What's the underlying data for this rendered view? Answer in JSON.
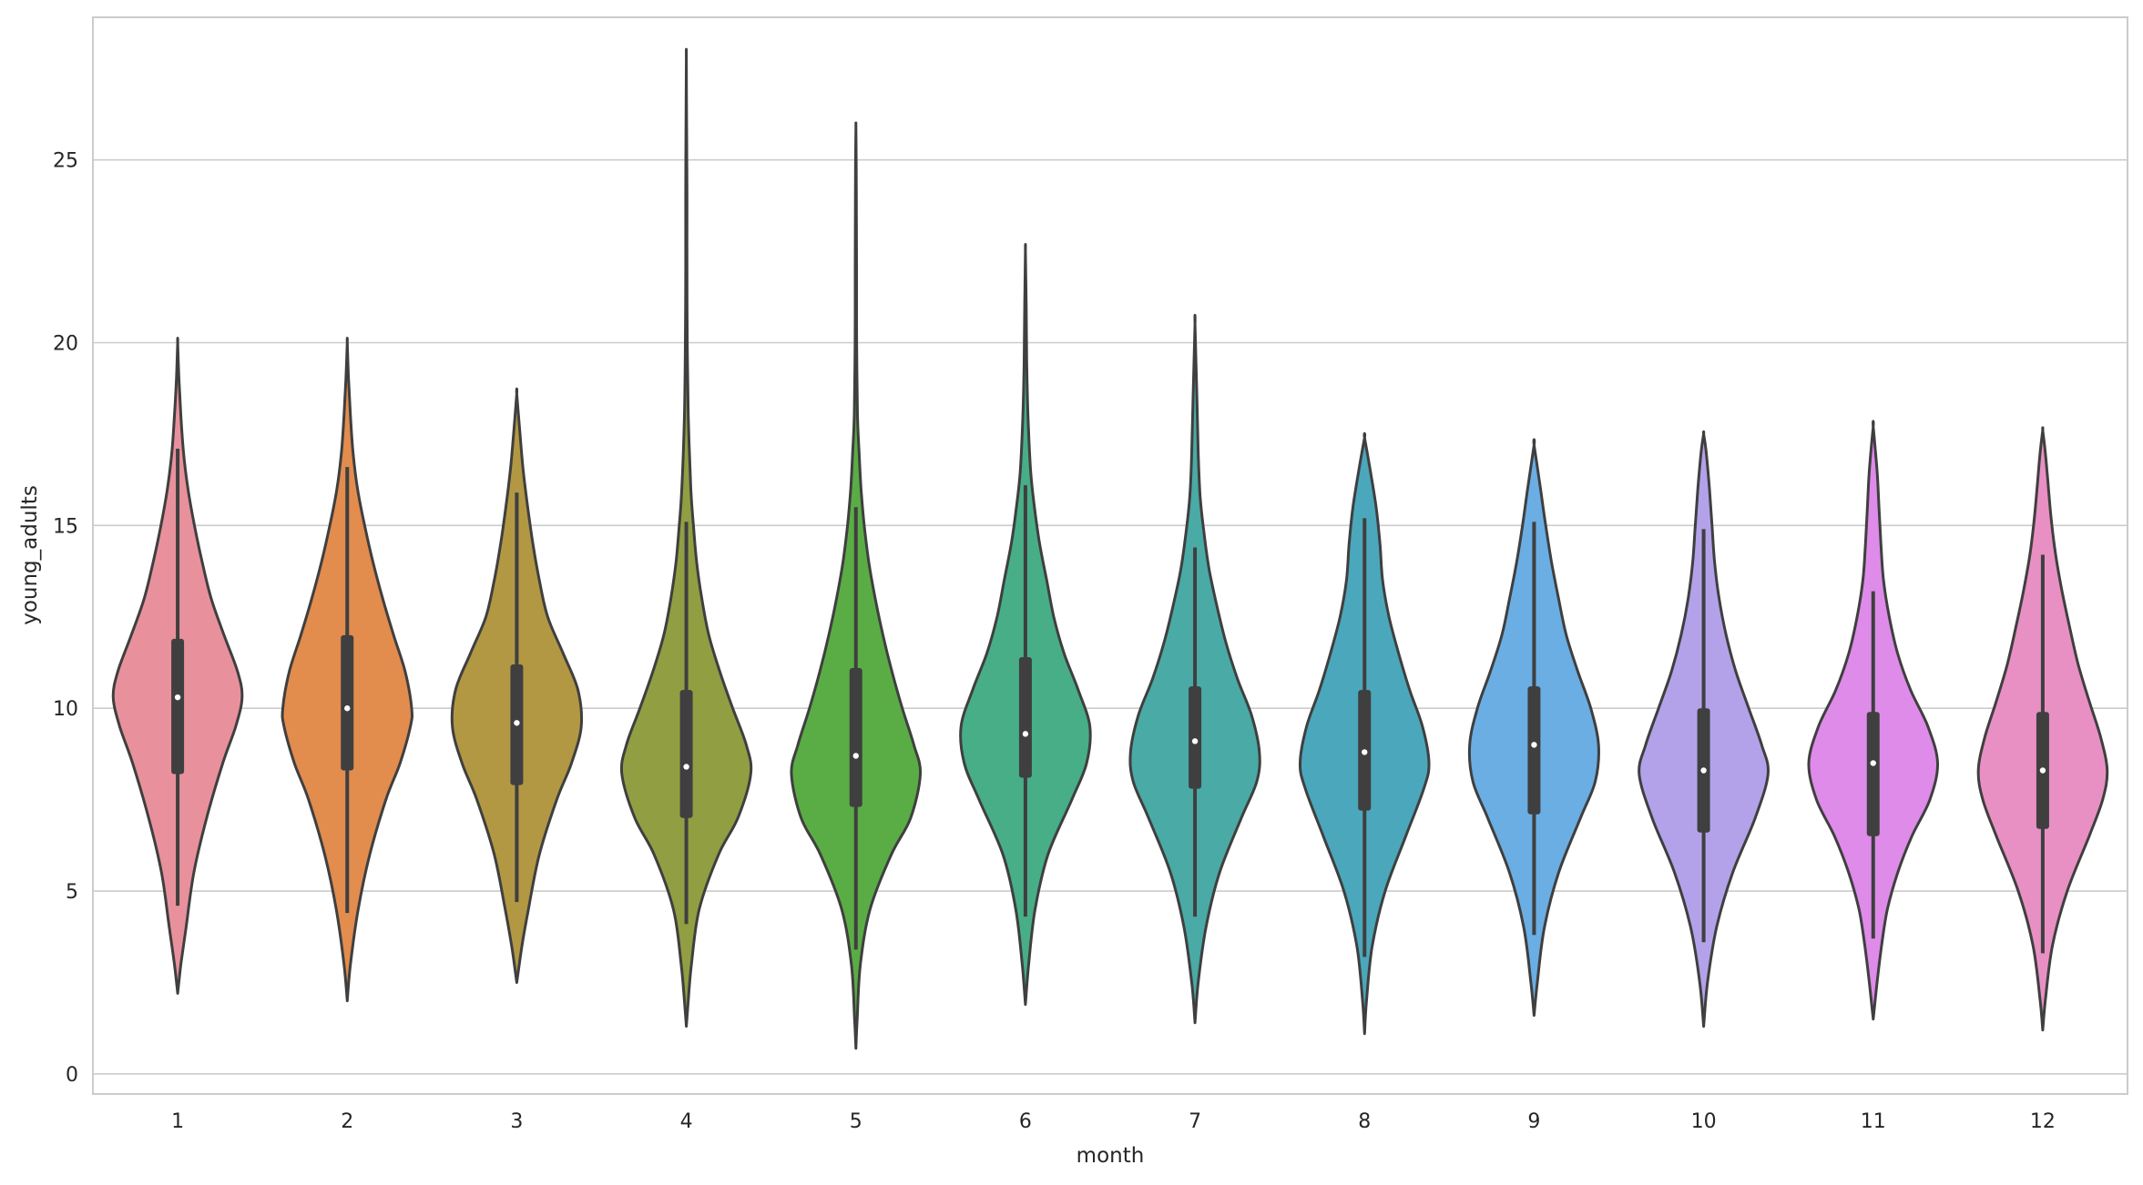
{
  "chart_data": {
    "type": "violin",
    "title": "",
    "xlabel": "month",
    "ylabel": "young_adults",
    "categories": [
      "1",
      "2",
      "3",
      "4",
      "5",
      "6",
      "7",
      "8",
      "9",
      "10",
      "11",
      "12"
    ],
    "yticks": [
      "0",
      "5",
      "10",
      "15",
      "20",
      "25"
    ],
    "ytick_values": [
      0,
      5,
      10,
      15,
      20,
      25
    ],
    "ylim": [
      -0.55,
      28.9
    ],
    "grid": true,
    "colors": [
      "#e8919c",
      "#e28c4e",
      "#b29843",
      "#929e42",
      "#5aad45",
      "#47ae88",
      "#4aaaa6",
      "#4ba7bc",
      "#6aaee4",
      "#b3a2ea",
      "#de8bea",
      "#e890c3"
    ],
    "violins": [
      {
        "min": 2.2,
        "max": 20.0,
        "q1": 8.2,
        "median": 10.3,
        "q3": 11.9,
        "whisker_low": 4.6,
        "whisker_high": 17.1,
        "profile": [
          [
            2.2,
            0.0
          ],
          [
            3.0,
            0.05
          ],
          [
            4.0,
            0.13
          ],
          [
            5.5,
            0.25
          ],
          [
            7.0,
            0.45
          ],
          [
            8.5,
            0.7
          ],
          [
            9.5,
            0.9
          ],
          [
            10.3,
            1.0
          ],
          [
            11.0,
            0.93
          ],
          [
            12.0,
            0.72
          ],
          [
            13.0,
            0.52
          ],
          [
            14.0,
            0.38
          ],
          [
            15.0,
            0.26
          ],
          [
            16.0,
            0.16
          ],
          [
            17.0,
            0.09
          ],
          [
            18.0,
            0.05
          ],
          [
            19.0,
            0.02
          ],
          [
            20.0,
            0.0
          ]
        ]
      },
      {
        "min": 2.0,
        "max": 20.0,
        "q1": 8.3,
        "median": 10.0,
        "q3": 12.0,
        "whisker_low": 4.4,
        "whisker_high": 16.6,
        "profile": [
          [
            2.0,
            0.0
          ],
          [
            3.0,
            0.05
          ],
          [
            4.5,
            0.17
          ],
          [
            6.0,
            0.35
          ],
          [
            7.5,
            0.6
          ],
          [
            8.5,
            0.82
          ],
          [
            9.5,
            0.98
          ],
          [
            10.0,
            1.0
          ],
          [
            11.0,
            0.9
          ],
          [
            12.0,
            0.72
          ],
          [
            13.0,
            0.55
          ],
          [
            14.0,
            0.4
          ],
          [
            15.0,
            0.27
          ],
          [
            16.0,
            0.16
          ],
          [
            17.0,
            0.09
          ],
          [
            18.0,
            0.05
          ],
          [
            19.0,
            0.02
          ],
          [
            20.0,
            0.0
          ]
        ]
      },
      {
        "min": 2.5,
        "max": 18.6,
        "q1": 7.9,
        "median": 9.6,
        "q3": 11.2,
        "whisker_low": 4.7,
        "whisker_high": 15.9,
        "profile": [
          [
            2.5,
            0.0
          ],
          [
            3.5,
            0.08
          ],
          [
            4.5,
            0.18
          ],
          [
            6.0,
            0.35
          ],
          [
            7.5,
            0.62
          ],
          [
            8.5,
            0.85
          ],
          [
            9.5,
            1.0
          ],
          [
            10.5,
            0.95
          ],
          [
            11.5,
            0.72
          ],
          [
            12.5,
            0.48
          ],
          [
            13.5,
            0.35
          ],
          [
            14.5,
            0.25
          ],
          [
            15.5,
            0.17
          ],
          [
            16.5,
            0.1
          ],
          [
            17.5,
            0.05
          ],
          [
            18.6,
            0.0
          ]
        ]
      },
      {
        "min": 1.3,
        "max": 27.8,
        "q1": 7.0,
        "median": 8.4,
        "q3": 10.5,
        "whisker_low": 4.1,
        "whisker_high": 15.1,
        "profile": [
          [
            1.3,
            0.0
          ],
          [
            2.0,
            0.03
          ],
          [
            3.0,
            0.08
          ],
          [
            4.5,
            0.2
          ],
          [
            6.0,
            0.5
          ],
          [
            7.0,
            0.8
          ],
          [
            8.2,
            1.0
          ],
          [
            9.0,
            0.93
          ],
          [
            10.0,
            0.72
          ],
          [
            11.0,
            0.52
          ],
          [
            12.0,
            0.35
          ],
          [
            13.0,
            0.24
          ],
          [
            14.0,
            0.16
          ],
          [
            15.0,
            0.11
          ],
          [
            16.0,
            0.07
          ],
          [
            18.0,
            0.03
          ],
          [
            20.0,
            0.015
          ],
          [
            22.0,
            0.01
          ],
          [
            24.0,
            0.01
          ],
          [
            25.0,
            0.008
          ],
          [
            26.0,
            0.005
          ],
          [
            27.8,
            0.0
          ]
        ]
      },
      {
        "min": 0.7,
        "max": 25.9,
        "q1": 7.3,
        "median": 8.7,
        "q3": 11.1,
        "whisker_low": 3.4,
        "whisker_high": 15.5,
        "profile": [
          [
            0.7,
            0.0
          ],
          [
            1.5,
            0.02
          ],
          [
            3.0,
            0.07
          ],
          [
            4.5,
            0.22
          ],
          [
            6.0,
            0.55
          ],
          [
            7.0,
            0.85
          ],
          [
            8.2,
            1.0
          ],
          [
            9.0,
            0.9
          ],
          [
            10.0,
            0.72
          ],
          [
            11.0,
            0.56
          ],
          [
            12.0,
            0.42
          ],
          [
            13.0,
            0.3
          ],
          [
            14.0,
            0.2
          ],
          [
            15.0,
            0.13
          ],
          [
            16.0,
            0.08
          ],
          [
            17.0,
            0.05
          ],
          [
            18.0,
            0.025
          ],
          [
            20.0,
            0.012
          ],
          [
            22.0,
            0.01
          ],
          [
            23.5,
            0.008
          ],
          [
            25.0,
            0.005
          ],
          [
            25.9,
            0.0
          ]
        ]
      },
      {
        "min": 1.9,
        "max": 22.5,
        "q1": 8.1,
        "median": 9.3,
        "q3": 11.4,
        "whisker_low": 4.3,
        "whisker_high": 16.1,
        "profile": [
          [
            1.9,
            0.0
          ],
          [
            3.0,
            0.05
          ],
          [
            4.5,
            0.15
          ],
          [
            6.0,
            0.35
          ],
          [
            7.5,
            0.72
          ],
          [
            8.5,
            0.95
          ],
          [
            9.5,
            1.0
          ],
          [
            10.5,
            0.82
          ],
          [
            11.5,
            0.6
          ],
          [
            12.5,
            0.44
          ],
          [
            13.5,
            0.33
          ],
          [
            14.5,
            0.22
          ],
          [
            15.5,
            0.14
          ],
          [
            16.5,
            0.08
          ],
          [
            18.0,
            0.04
          ],
          [
            19.5,
            0.02
          ],
          [
            21.0,
            0.012
          ],
          [
            22.5,
            0.0
          ]
        ]
      },
      {
        "min": 1.4,
        "max": 20.5,
        "q1": 7.8,
        "median": 9.1,
        "q3": 10.6,
        "whisker_low": 4.3,
        "whisker_high": 14.4,
        "profile": [
          [
            1.4,
            0.0
          ],
          [
            2.5,
            0.05
          ],
          [
            4.0,
            0.17
          ],
          [
            5.5,
            0.38
          ],
          [
            7.0,
            0.72
          ],
          [
            8.0,
            0.96
          ],
          [
            8.8,
            1.0
          ],
          [
            9.8,
            0.88
          ],
          [
            10.8,
            0.66
          ],
          [
            11.8,
            0.48
          ],
          [
            12.8,
            0.34
          ],
          [
            13.8,
            0.22
          ],
          [
            14.8,
            0.14
          ],
          [
            15.8,
            0.08
          ],
          [
            17.0,
            0.05
          ],
          [
            18.5,
            0.03
          ],
          [
            20.5,
            0.0
          ]
        ]
      },
      {
        "min": 1.1,
        "max": 17.4,
        "q1": 7.2,
        "median": 8.8,
        "q3": 10.5,
        "whisker_low": 3.2,
        "whisker_high": 15.2,
        "profile": [
          [
            1.1,
            0.0
          ],
          [
            2.0,
            0.03
          ],
          [
            3.5,
            0.12
          ],
          [
            5.0,
            0.32
          ],
          [
            6.5,
            0.64
          ],
          [
            7.8,
            0.92
          ],
          [
            8.5,
            1.0
          ],
          [
            9.5,
            0.9
          ],
          [
            10.5,
            0.7
          ],
          [
            11.5,
            0.53
          ],
          [
            12.5,
            0.38
          ],
          [
            13.5,
            0.28
          ],
          [
            14.5,
            0.24
          ],
          [
            15.5,
            0.18
          ],
          [
            16.5,
            0.09
          ],
          [
            17.4,
            0.0
          ]
        ]
      },
      {
        "min": 1.6,
        "max": 17.2,
        "q1": 7.1,
        "median": 9.0,
        "q3": 10.6,
        "whisker_low": 3.8,
        "whisker_high": 15.1,
        "profile": [
          [
            1.6,
            0.0
          ],
          [
            2.5,
            0.05
          ],
          [
            4.0,
            0.16
          ],
          [
            5.5,
            0.38
          ],
          [
            7.0,
            0.72
          ],
          [
            8.0,
            0.95
          ],
          [
            9.0,
            1.0
          ],
          [
            10.0,
            0.88
          ],
          [
            11.0,
            0.68
          ],
          [
            12.0,
            0.5
          ],
          [
            13.0,
            0.38
          ],
          [
            14.0,
            0.27
          ],
          [
            15.0,
            0.18
          ],
          [
            16.0,
            0.1
          ],
          [
            17.2,
            0.0
          ]
        ]
      },
      {
        "min": 1.3,
        "max": 17.5,
        "q1": 6.6,
        "median": 8.3,
        "q3": 10.0,
        "whisker_low": 3.6,
        "whisker_high": 14.9,
        "profile": [
          [
            1.3,
            0.0
          ],
          [
            2.5,
            0.06
          ],
          [
            4.0,
            0.2
          ],
          [
            5.5,
            0.45
          ],
          [
            7.0,
            0.8
          ],
          [
            8.2,
            1.0
          ],
          [
            9.0,
            0.9
          ],
          [
            10.0,
            0.7
          ],
          [
            11.0,
            0.5
          ],
          [
            12.0,
            0.35
          ],
          [
            13.0,
            0.24
          ],
          [
            14.0,
            0.17
          ],
          [
            15.0,
            0.13
          ],
          [
            16.0,
            0.09
          ],
          [
            17.0,
            0.04
          ],
          [
            17.5,
            0.0
          ]
        ]
      },
      {
        "min": 1.5,
        "max": 17.7,
        "q1": 6.5,
        "median": 8.5,
        "q3": 9.9,
        "whisker_low": 3.7,
        "whisker_high": 13.2,
        "profile": [
          [
            1.5,
            0.0
          ],
          [
            2.5,
            0.06
          ],
          [
            3.5,
            0.13
          ],
          [
            4.5,
            0.22
          ],
          [
            5.5,
            0.38
          ],
          [
            6.5,
            0.6
          ],
          [
            7.5,
            0.88
          ],
          [
            8.5,
            1.0
          ],
          [
            9.5,
            0.85
          ],
          [
            10.5,
            0.58
          ],
          [
            11.5,
            0.38
          ],
          [
            12.5,
            0.25
          ],
          [
            13.5,
            0.16
          ],
          [
            14.5,
            0.12
          ],
          [
            15.5,
            0.09
          ],
          [
            16.5,
            0.06
          ],
          [
            17.7,
            0.0
          ]
        ]
      },
      {
        "min": 1.2,
        "max": 17.6,
        "q1": 6.7,
        "median": 8.3,
        "q3": 9.9,
        "whisker_low": 3.3,
        "whisker_high": 14.2,
        "profile": [
          [
            1.2,
            0.0
          ],
          [
            2.0,
            0.04
          ],
          [
            3.5,
            0.15
          ],
          [
            5.0,
            0.38
          ],
          [
            6.5,
            0.72
          ],
          [
            7.5,
            0.93
          ],
          [
            8.3,
            1.0
          ],
          [
            9.2,
            0.9
          ],
          [
            10.2,
            0.72
          ],
          [
            11.2,
            0.55
          ],
          [
            12.2,
            0.42
          ],
          [
            13.2,
            0.3
          ],
          [
            14.2,
            0.2
          ],
          [
            15.2,
            0.13
          ],
          [
            16.2,
            0.08
          ],
          [
            17.0,
            0.04
          ],
          [
            17.6,
            0.0
          ]
        ]
      }
    ]
  }
}
